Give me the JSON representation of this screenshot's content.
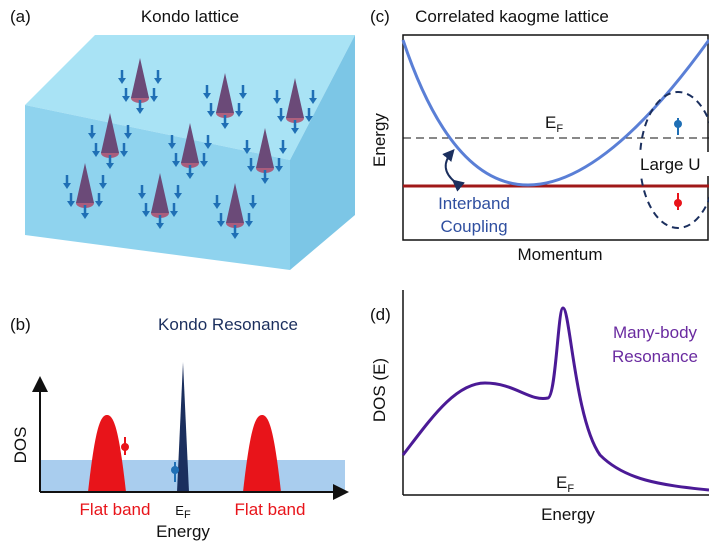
{
  "panels": [
    {
      "label": "(a)",
      "title": "Kondo lattice"
    },
    {
      "label": "(b)",
      "title": "Kondo Resonance",
      "y_label": "DOS",
      "left_band": "Flat band",
      "fermi": {
        "main": "E",
        "sub": "F"
      },
      "x_label": "Energy",
      "right_band": "Flat band"
    },
    {
      "label": "(c)",
      "title": "Correlated kaogme lattice",
      "y_label": "Energy",
      "fermi": {
        "main": "E",
        "sub": "F"
      },
      "annotation": "Large U",
      "coupling": [
        "Interband",
        "Coupling"
      ],
      "x_label": "Momentum"
    },
    {
      "label": "(d)",
      "y_label": "DOS (E)",
      "annotation": [
        "Many-body",
        "Resonance"
      ],
      "fermi": {
        "main": "E",
        "sub": "F"
      },
      "x_label": "Energy"
    }
  ]
}
